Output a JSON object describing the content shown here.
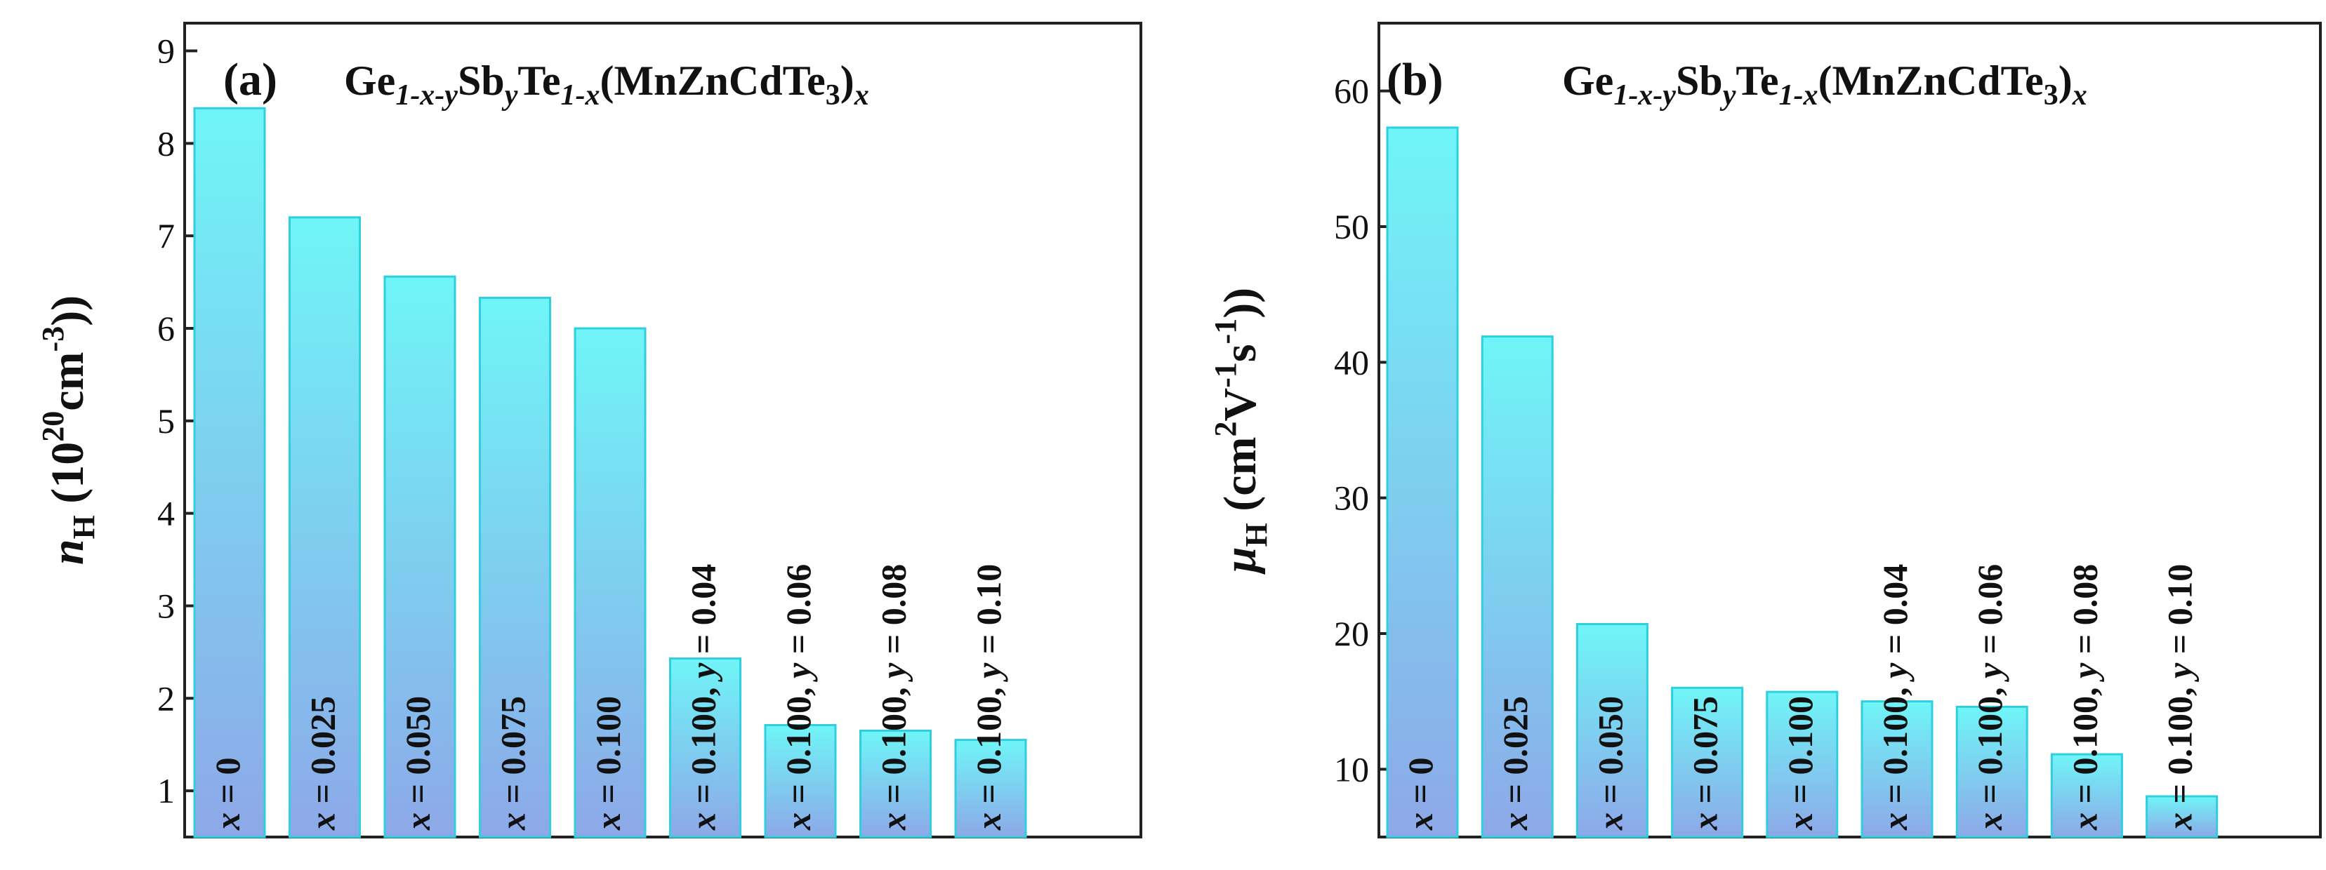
{
  "colors": {
    "bar_top": "#6ff5f7",
    "bar_bottom": "#8da8e8",
    "bar_stroke": "#2fcfe0",
    "axis": "#222222"
  },
  "chart_data": [
    {
      "type": "bar",
      "panel_label": "(a)",
      "title_parts": [
        "Ge",
        "1-x-y",
        "Sb",
        "y",
        "Te",
        "1-x",
        "(MnZnCdTe",
        "3",
        ")",
        "x"
      ],
      "ylabel_parts": [
        "n",
        "H",
        " (10",
        "20",
        "cm",
        "-3",
        ")"
      ],
      "ylim": [
        0.5,
        9.3
      ],
      "yticks": [
        1,
        2,
        3,
        4,
        5,
        6,
        7,
        8,
        9
      ],
      "categories": [
        "x = 0",
        "x = 0.025",
        "x = 0.050",
        "x = 0.075",
        "x = 0.100",
        "x = 0.100,  y = 0.04",
        "x = 0.100,  y = 0.06",
        "x = 0.100,  y = 0.08",
        "x = 0.100,  y = 0.10"
      ],
      "values": [
        8.38,
        7.2,
        6.56,
        6.33,
        6.0,
        2.43,
        1.71,
        1.65,
        1.55
      ]
    },
    {
      "type": "bar",
      "panel_label": "(b)",
      "title_parts": [
        "Ge",
        "1-x-y",
        "Sb",
        "y",
        "Te",
        "1-x",
        "(MnZnCdTe",
        "3",
        ")",
        "x"
      ],
      "ylabel_parts": [
        "μ",
        "H",
        " (cm",
        "2",
        "V",
        "-1",
        "s",
        "-1",
        ")"
      ],
      "ylim": [
        5,
        65
      ],
      "yticks": [
        10,
        20,
        30,
        40,
        50,
        60
      ],
      "categories": [
        "x = 0",
        "x = 0.025",
        "x = 0.050",
        "x = 0.075",
        "x = 0.100",
        "x = 0.100,  y = 0.04",
        "x = 0.100,  y = 0.06",
        "x = 0.100,  y = 0.08",
        "x = 0.100,  y = 0.10"
      ],
      "values": [
        57.3,
        41.9,
        20.7,
        16.0,
        15.7,
        15.0,
        14.6,
        11.1,
        8.0
      ]
    }
  ]
}
